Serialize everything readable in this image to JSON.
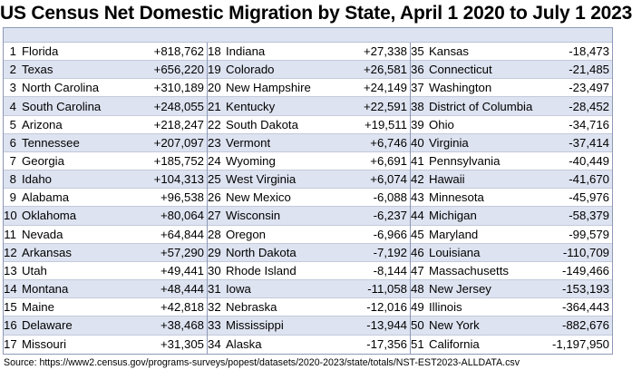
{
  "title": "US Census Net Domestic Migration by State, April 1 2020 to July 1 2023",
  "source": "Source: https://www2.census.gov/programs-surveys/popest/datasets/2020-2023/state/totals/NST-EST2023-ALLDATA.csv",
  "columns": [
    [
      {
        "rank": "1",
        "state": "Florida",
        "value": "+818,762"
      },
      {
        "rank": "2",
        "state": "Texas",
        "value": "+656,220"
      },
      {
        "rank": "3",
        "state": "North Carolina",
        "value": "+310,189"
      },
      {
        "rank": "4",
        "state": "South Carolina",
        "value": "+248,055"
      },
      {
        "rank": "5",
        "state": "Arizona",
        "value": "+218,247"
      },
      {
        "rank": "6",
        "state": "Tennessee",
        "value": "+207,097"
      },
      {
        "rank": "7",
        "state": "Georgia",
        "value": "+185,752"
      },
      {
        "rank": "8",
        "state": "Idaho",
        "value": "+104,313"
      },
      {
        "rank": "9",
        "state": "Alabama",
        "value": "+96,538"
      },
      {
        "rank": "10",
        "state": "Oklahoma",
        "value": "+80,064"
      },
      {
        "rank": "11",
        "state": "Nevada",
        "value": "+64,844"
      },
      {
        "rank": "12",
        "state": "Arkansas",
        "value": "+57,290"
      },
      {
        "rank": "13",
        "state": "Utah",
        "value": "+49,441"
      },
      {
        "rank": "14",
        "state": "Montana",
        "value": "+48,444"
      },
      {
        "rank": "15",
        "state": "Maine",
        "value": "+42,818"
      },
      {
        "rank": "16",
        "state": "Delaware",
        "value": "+38,468"
      },
      {
        "rank": "17",
        "state": "Missouri",
        "value": "+31,305"
      }
    ],
    [
      {
        "rank": "18",
        "state": "Indiana",
        "value": "+27,338"
      },
      {
        "rank": "19",
        "state": "Colorado",
        "value": "+26,581"
      },
      {
        "rank": "20",
        "state": "New Hampshire",
        "value": "+24,149"
      },
      {
        "rank": "21",
        "state": "Kentucky",
        "value": "+22,591"
      },
      {
        "rank": "22",
        "state": "South Dakota",
        "value": "+19,511"
      },
      {
        "rank": "23",
        "state": "Vermont",
        "value": "+6,746"
      },
      {
        "rank": "24",
        "state": "Wyoming",
        "value": "+6,691"
      },
      {
        "rank": "25",
        "state": "West Virginia",
        "value": "+6,074"
      },
      {
        "rank": "26",
        "state": "New Mexico",
        "value": "-6,088"
      },
      {
        "rank": "27",
        "state": "Wisconsin",
        "value": "-6,237"
      },
      {
        "rank": "28",
        "state": "Oregon",
        "value": "-6,966"
      },
      {
        "rank": "29",
        "state": "North Dakota",
        "value": "-7,192"
      },
      {
        "rank": "30",
        "state": "Rhode Island",
        "value": "-8,144"
      },
      {
        "rank": "31",
        "state": "Iowa",
        "value": "-11,058"
      },
      {
        "rank": "32",
        "state": "Nebraska",
        "value": "-12,016"
      },
      {
        "rank": "33",
        "state": "Mississippi",
        "value": "-13,944"
      },
      {
        "rank": "34",
        "state": "Alaska",
        "value": "-17,356"
      }
    ],
    [
      {
        "rank": "35",
        "state": "Kansas",
        "value": "-18,473"
      },
      {
        "rank": "36",
        "state": "Connecticut",
        "value": "-21,485"
      },
      {
        "rank": "37",
        "state": "Washington",
        "value": "-23,497"
      },
      {
        "rank": "38",
        "state": "District of Columbia",
        "value": "-28,452"
      },
      {
        "rank": "39",
        "state": "Ohio",
        "value": "-34,716"
      },
      {
        "rank": "40",
        "state": "Virginia",
        "value": "-37,414"
      },
      {
        "rank": "41",
        "state": "Pennsylvania",
        "value": "-40,449"
      },
      {
        "rank": "42",
        "state": "Hawaii",
        "value": "-41,670"
      },
      {
        "rank": "43",
        "state": "Minnesota",
        "value": "-45,976"
      },
      {
        "rank": "44",
        "state": "Michigan",
        "value": "-58,379"
      },
      {
        "rank": "45",
        "state": "Maryland",
        "value": "-99,579"
      },
      {
        "rank": "46",
        "state": "Louisiana",
        "value": "-110,709"
      },
      {
        "rank": "47",
        "state": "Massachusetts",
        "value": "-149,466"
      },
      {
        "rank": "48",
        "state": "New Jersey",
        "value": "-153,193"
      },
      {
        "rank": "49",
        "state": "Illinois",
        "value": "-364,443"
      },
      {
        "rank": "50",
        "state": "New York",
        "value": "-882,676"
      },
      {
        "rank": "51",
        "state": "California",
        "value": "-1,197,950"
      }
    ]
  ]
}
